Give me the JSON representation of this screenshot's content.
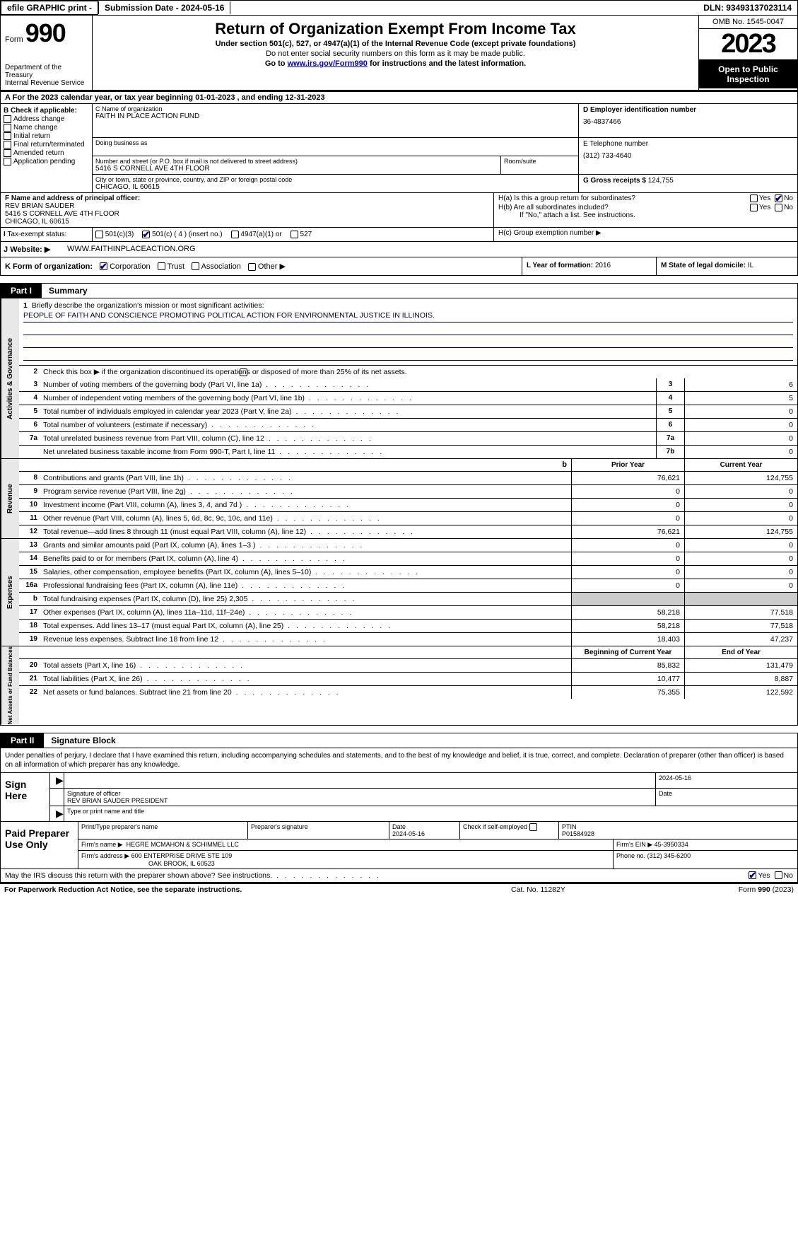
{
  "topbar": {
    "efile": "efile GRAPHIC print -",
    "submission": "Submission Date - 2024-05-16",
    "dln": "DLN: 93493137023114"
  },
  "header": {
    "form_prefix": "Form",
    "form_number": "990",
    "dept": "Department of the Treasury\nInternal Revenue Service",
    "title": "Return of Organization Exempt From Income Tax",
    "sub": "Under section 501(c), 527, or 4947(a)(1) of the Internal Revenue Code (except private foundations)",
    "note1": "Do not enter social security numbers on this form as it may be made public.",
    "note2_pre": "Go to ",
    "note2_link": "www.irs.gov/Form990",
    "note2_post": " for instructions and the latest information.",
    "omb": "OMB No. 1545-0047",
    "year": "2023",
    "open": "Open to Public Inspection"
  },
  "section_a": "For the 2023 calendar year, or tax year beginning 01-01-2023    , and ending 12-31-2023",
  "box_b": {
    "hdr": "B Check if applicable:",
    "items": [
      "Address change",
      "Name change",
      "Initial return",
      "Final return/terminated",
      "Amended return",
      "Application pending"
    ]
  },
  "box_c": {
    "name_lbl": "C Name of organization",
    "name": "FAITH IN PLACE ACTION FUND",
    "dba_lbl": "Doing business as",
    "addr_lbl": "Number and street (or P.O. box if mail is not delivered to street address)",
    "room_lbl": "Room/suite",
    "addr": "5416 S CORNELL AVE 4TH FLOOR",
    "city_lbl": "City or town, state or province, country, and ZIP or foreign postal code",
    "city": "CHICAGO, IL  60615"
  },
  "box_d": {
    "lbl": "D Employer identification number",
    "val": "36-4837466"
  },
  "box_e": {
    "lbl": "E Telephone number",
    "val": "(312) 733-4640"
  },
  "box_g": {
    "lbl": "G Gross receipts $",
    "val": "124,755"
  },
  "box_f": {
    "lbl": "F  Name and address of principal officer:",
    "name": "REV BRIAN SAUDER",
    "addr": "5416 S CORNELL AVE 4TH FLOOR",
    "city": "CHICAGO, IL  60615"
  },
  "box_h": {
    "a_lbl": "H(a)  Is this a group return for subordinates?",
    "b_lbl": "H(b)  Are all subordinates included?",
    "b_note": "If \"No,\" attach a list. See instructions.",
    "c_lbl": "H(c)  Group exemption number ▶"
  },
  "box_i": {
    "lbl": "Tax-exempt status:",
    "opts": [
      "501(c)(3)",
      "501(c) ( 4 ) (insert no.)",
      "4947(a)(1) or",
      "527"
    ]
  },
  "box_j": {
    "lbl": "Website: ▶",
    "val": "WWW.FAITHINPLACEACTION.ORG"
  },
  "box_k": {
    "lbl": "K Form of organization:",
    "opts": [
      "Corporation",
      "Trust",
      "Association",
      "Other ▶"
    ]
  },
  "box_l": {
    "lbl": "L Year of formation:",
    "val": "2016"
  },
  "box_m": {
    "lbl": "M State of legal domicile:",
    "val": "IL"
  },
  "part1": {
    "label": "Part I",
    "title": "Summary",
    "mission_lbl": "Briefly describe the organization's mission or most significant activities:",
    "mission": "PEOPLE OF FAITH AND CONSCIENCE PROMOTING POLITICAL ACTION FOR ENVIRONMENTAL JUSTICE IN ILLINOIS.",
    "line2": "Check this box ▶       if the organization discontinued its operations or disposed of more than 25% of its net assets.",
    "gov_rows": [
      {
        "n": "3",
        "t": "Number of voting members of the governing body (Part VI, line 1a)",
        "box": "3",
        "v": "6"
      },
      {
        "n": "4",
        "t": "Number of independent voting members of the governing body (Part VI, line 1b)",
        "box": "4",
        "v": "5"
      },
      {
        "n": "5",
        "t": "Total number of individuals employed in calendar year 2023 (Part V, line 2a)",
        "box": "5",
        "v": "0"
      },
      {
        "n": "6",
        "t": "Total number of volunteers (estimate if necessary)",
        "box": "6",
        "v": "0"
      },
      {
        "n": "7a",
        "t": "Total unrelated business revenue from Part VIII, column (C), line 12",
        "box": "7a",
        "v": "0"
      },
      {
        "n": "",
        "t": "Net unrelated business taxable income from Form 990-T, Part I, line 11",
        "box": "7b",
        "v": "0"
      }
    ],
    "col_hdr": {
      "prior": "Prior Year",
      "current": "Current Year",
      "begin": "Beginning of Current Year",
      "end": "End of Year"
    },
    "rev_rows": [
      {
        "n": "8",
        "t": "Contributions and grants (Part VIII, line 1h)",
        "p": "76,621",
        "c": "124,755"
      },
      {
        "n": "9",
        "t": "Program service revenue (Part VIII, line 2g)",
        "p": "0",
        "c": "0"
      },
      {
        "n": "10",
        "t": "Investment income (Part VIII, column (A), lines 3, 4, and 7d )",
        "p": "0",
        "c": "0"
      },
      {
        "n": "11",
        "t": "Other revenue (Part VIII, column (A), lines 5, 6d, 8c, 9c, 10c, and 11e)",
        "p": "0",
        "c": "0"
      },
      {
        "n": "12",
        "t": "Total revenue—add lines 8 through 11 (must equal Part VIII, column (A), line 12)",
        "p": "76,621",
        "c": "124,755"
      }
    ],
    "exp_rows": [
      {
        "n": "13",
        "t": "Grants and similar amounts paid (Part IX, column (A), lines 1–3 )",
        "p": "0",
        "c": "0"
      },
      {
        "n": "14",
        "t": "Benefits paid to or for members (Part IX, column (A), line 4)",
        "p": "0",
        "c": "0"
      },
      {
        "n": "15",
        "t": "Salaries, other compensation, employee benefits (Part IX, column (A), lines 5–10)",
        "p": "0",
        "c": "0"
      },
      {
        "n": "16a",
        "t": "Professional fundraising fees (Part IX, column (A), line 11e)",
        "p": "0",
        "c": "0"
      },
      {
        "n": "b",
        "t": "Total fundraising expenses (Part IX, column (D), line 25) 2,305",
        "p": "",
        "c": "",
        "grey": true
      },
      {
        "n": "17",
        "t": "Other expenses (Part IX, column (A), lines 11a–11d, 11f–24e)",
        "p": "58,218",
        "c": "77,518"
      },
      {
        "n": "18",
        "t": "Total expenses. Add lines 13–17 (must equal Part IX, column (A), line 25)",
        "p": "58,218",
        "c": "77,518"
      },
      {
        "n": "19",
        "t": "Revenue less expenses. Subtract line 18 from line 12",
        "p": "18,403",
        "c": "47,237"
      }
    ],
    "net_rows": [
      {
        "n": "20",
        "t": "Total assets (Part X, line 16)",
        "p": "85,832",
        "c": "131,479"
      },
      {
        "n": "21",
        "t": "Total liabilities (Part X, line 26)",
        "p": "10,477",
        "c": "8,887"
      },
      {
        "n": "22",
        "t": "Net assets or fund balances. Subtract line 21 from line 20",
        "p": "75,355",
        "c": "122,592"
      }
    ],
    "sidebars": [
      "Activities & Governance",
      "Revenue",
      "Expenses",
      "Net Assets or Fund Balances"
    ]
  },
  "part2": {
    "label": "Part II",
    "title": "Signature Block",
    "perjury": "Under penalties of perjury, I declare that I have examined this return, including accompanying schedules and statements, and to the best of my knowledge and belief, it is true, correct, and complete. Declaration of preparer (other than officer) is based on all information of which preparer has any knowledge.",
    "sign_here": "Sign Here",
    "sig_lbl": "Signature of officer",
    "sig_name": "REV BRIAN SAUDER  PRESIDENT",
    "sig_type_lbl": "Type or print name and title",
    "date_lbl": "Date",
    "sig_date": "2024-05-16",
    "paid": "Paid Preparer Use Only",
    "prep_name_lbl": "Print/Type preparer's name",
    "prep_sig_lbl": "Preparer's signature",
    "prep_date": "2024-05-16",
    "self_emp": "Check         if self-employed",
    "ptin_lbl": "PTIN",
    "ptin": "P01584928",
    "firm_name_lbl": "Firm's name    ▶",
    "firm_name": "HEGRE MCMAHON & SCHIMMEL LLC",
    "firm_ein_lbl": "Firm's EIN ▶",
    "firm_ein": "45-3950334",
    "firm_addr_lbl": "Firm's address ▶",
    "firm_addr": "600 ENTERPRISE DRIVE STE 109",
    "firm_city": "OAK BROOK, IL  60523",
    "phone_lbl": "Phone no.",
    "phone": "(312) 345-6200",
    "discuss": "May the IRS discuss this return with the preparer shown above? See instructions."
  },
  "footer": {
    "left": "For Paperwork Reduction Act Notice, see the separate instructions.",
    "center": "Cat. No. 11282Y",
    "right_pre": "Form ",
    "right_form": "990",
    "right_post": " (2023)"
  },
  "yn": {
    "yes": "Yes",
    "no": "No"
  }
}
